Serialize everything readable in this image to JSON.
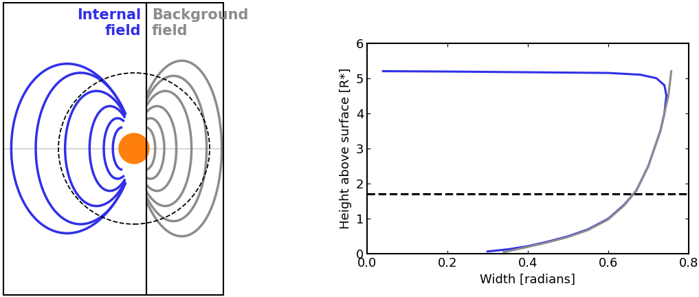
{
  "diagram": {
    "panels": [
      {
        "label_lines": [
          "Internal",
          "field"
        ],
        "color": "#3030e8"
      },
      {
        "label_lines": [
          "Background",
          "field"
        ],
        "color": "#8c8c8c"
      }
    ],
    "star_color": "#ff7f0e"
  },
  "chart_data": {
    "type": "line",
    "xlabel": "Width [radians]",
    "ylabel": "Height above surface [R*]",
    "xlim": [
      0.0,
      0.8
    ],
    "xticks": [
      0.0,
      0.2,
      0.4,
      0.6,
      0.8
    ],
    "ylim": [
      0,
      6
    ],
    "yticks": [
      0,
      1,
      2,
      3,
      4,
      5,
      6
    ],
    "series": [
      {
        "color": "#3030e8",
        "line_style": "solid",
        "x": [
          0.04,
          0.2,
          0.4,
          0.6,
          0.68,
          0.72,
          0.74,
          0.745,
          0.74,
          0.73,
          0.7,
          0.67,
          0.64,
          0.6,
          0.55,
          0.5,
          0.45,
          0.4,
          0.35,
          0.3
        ],
        "values": [
          5.2,
          5.19,
          5.17,
          5.15,
          5.1,
          5.0,
          4.8,
          4.5,
          4.0,
          3.5,
          2.5,
          1.8,
          1.4,
          1.0,
          0.7,
          0.5,
          0.35,
          0.22,
          0.13,
          0.07
        ]
      },
      {
        "color": "#8c8c8c",
        "line_style": "solid",
        "x": [
          0.34,
          0.4,
          0.45,
          0.5,
          0.55,
          0.6,
          0.64,
          0.67,
          0.7,
          0.73,
          0.75,
          0.757
        ],
        "values": [
          0.05,
          0.2,
          0.33,
          0.48,
          0.68,
          0.98,
          1.38,
          1.8,
          2.5,
          3.5,
          4.5,
          5.2
        ]
      },
      {
        "color": "#000000",
        "line_style": "dashed",
        "x": [
          0.0,
          0.8
        ],
        "values": [
          1.7,
          1.7
        ]
      }
    ]
  }
}
